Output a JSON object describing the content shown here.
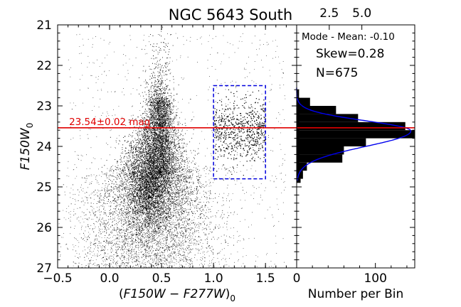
{
  "chart_data": [
    {
      "type": "scatter",
      "title": "NGC 5643 South",
      "xlabel_parts": [
        "(",
        "F150W",
        " − ",
        "F277W",
        ")",
        "0"
      ],
      "ylabel_parts": [
        "F150W",
        "0"
      ],
      "xlim": [
        -0.5,
        1.8
      ],
      "ylim": [
        27,
        21
      ],
      "y_inverted": true,
      "xticks": [
        -0.5,
        0.0,
        0.5,
        1.0,
        1.5
      ],
      "xtick_labels": [
        "−0.5",
        "0.0",
        "0.5",
        "1.0",
        "1.5"
      ],
      "yticks": [
        21,
        22,
        23,
        24,
        25,
        26,
        27
      ],
      "ytick_labels": [
        "21",
        "22",
        "23",
        "24",
        "25",
        "26",
        "27"
      ],
      "trgb_line": {
        "y": 23.54,
        "color": "#e00000"
      },
      "trgb_label": "23.54±0.02 mag",
      "selection_box": {
        "x": [
          1.0,
          1.5
        ],
        "y": [
          22.5,
          24.8
        ],
        "color": "#0000dd"
      },
      "point_color": "#000000"
    },
    {
      "type": "bar",
      "orientation": "horizontal",
      "xlabel": "Number per Bin",
      "xlim": [
        0,
        150
      ],
      "xticks": [
        0,
        100
      ],
      "xtick_labels": [
        "0",
        "100"
      ],
      "top_ticks": [
        41.4,
        82.8
      ],
      "top_tick_labels": [
        "2.5",
        "5.0"
      ],
      "ylim": [
        27,
        21
      ],
      "bins_y": [
        [
          22.6,
          22.8
        ],
        [
          22.8,
          23.0
        ],
        [
          23.0,
          23.2
        ],
        [
          23.2,
          23.4
        ],
        [
          23.4,
          23.6
        ],
        [
          23.6,
          23.8
        ],
        [
          23.8,
          24.0
        ],
        [
          24.0,
          24.2
        ],
        [
          24.2,
          24.4
        ],
        [
          24.4,
          24.6
        ],
        [
          24.6,
          24.8
        ],
        [
          24.8,
          24.9
        ]
      ],
      "values": [
        3,
        17,
        50,
        78,
        138,
        150,
        88,
        60,
        58,
        13,
        8,
        5
      ],
      "fit_curve_color": "#0000ee",
      "fit": {
        "mean": 23.62,
        "sigma": 0.35,
        "amplitude": 145,
        "skew": 0.28
      },
      "annotations": {
        "mode_mean": "Mode - Mean: -0.10",
        "skew": "Skew=0.28",
        "n": "N=675"
      }
    }
  ]
}
